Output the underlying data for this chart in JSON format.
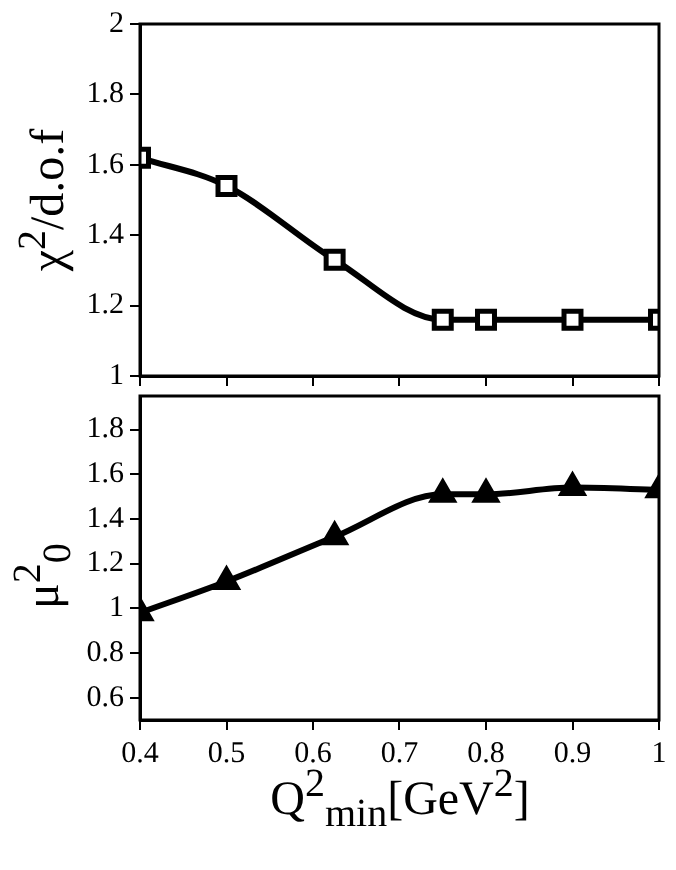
{
  "chart_data": [
    {
      "type": "line",
      "ylabel": "χ$^{2}$/d.o.f",
      "x": [
        0.4,
        0.5,
        0.625,
        0.75,
        0.8,
        0.9,
        1.0
      ],
      "series": [
        {
          "color": "#000000",
          "values": [
            1.62,
            1.54,
            1.33,
            1.16,
            1.16,
            1.16,
            1.16
          ]
        }
      ],
      "xlim": [
        0.4,
        1.0
      ],
      "xticks": [
        0.4,
        0.5,
        0.6,
        0.7,
        0.8,
        0.9,
        1
      ],
      "ylim": [
        1,
        2
      ],
      "yticks": [
        1,
        1.2,
        1.4,
        1.6,
        1.8,
        2
      ],
      "tick_labels": "y",
      "marker": "square",
      "line_style": "solid",
      "grid": false,
      "legend": false
    },
    {
      "type": "line",
      "ylabel": "μ$^{2}$$_{0}$",
      "xlabel": "Q$^{2}$$_{min}$[GeV$^{2}$]",
      "x": [
        0.4,
        0.5,
        0.625,
        0.75,
        0.8,
        0.9,
        1.0
      ],
      "series": [
        {
          "color": "#000000",
          "values": [
            0.98,
            1.12,
            1.32,
            1.51,
            1.51,
            1.54,
            1.53
          ]
        }
      ],
      "xlim": [
        0.4,
        1.0
      ],
      "xticks": [
        0.4,
        0.5,
        0.6,
        0.7,
        0.8,
        0.9,
        1
      ],
      "ylim": [
        0.5,
        1.95
      ],
      "yticks": [
        0.6,
        0.8,
        1,
        1.2,
        1.4,
        1.6,
        1.8
      ],
      "marker": "triangle",
      "line_style": "solid",
      "grid": false,
      "legend": false
    }
  ]
}
